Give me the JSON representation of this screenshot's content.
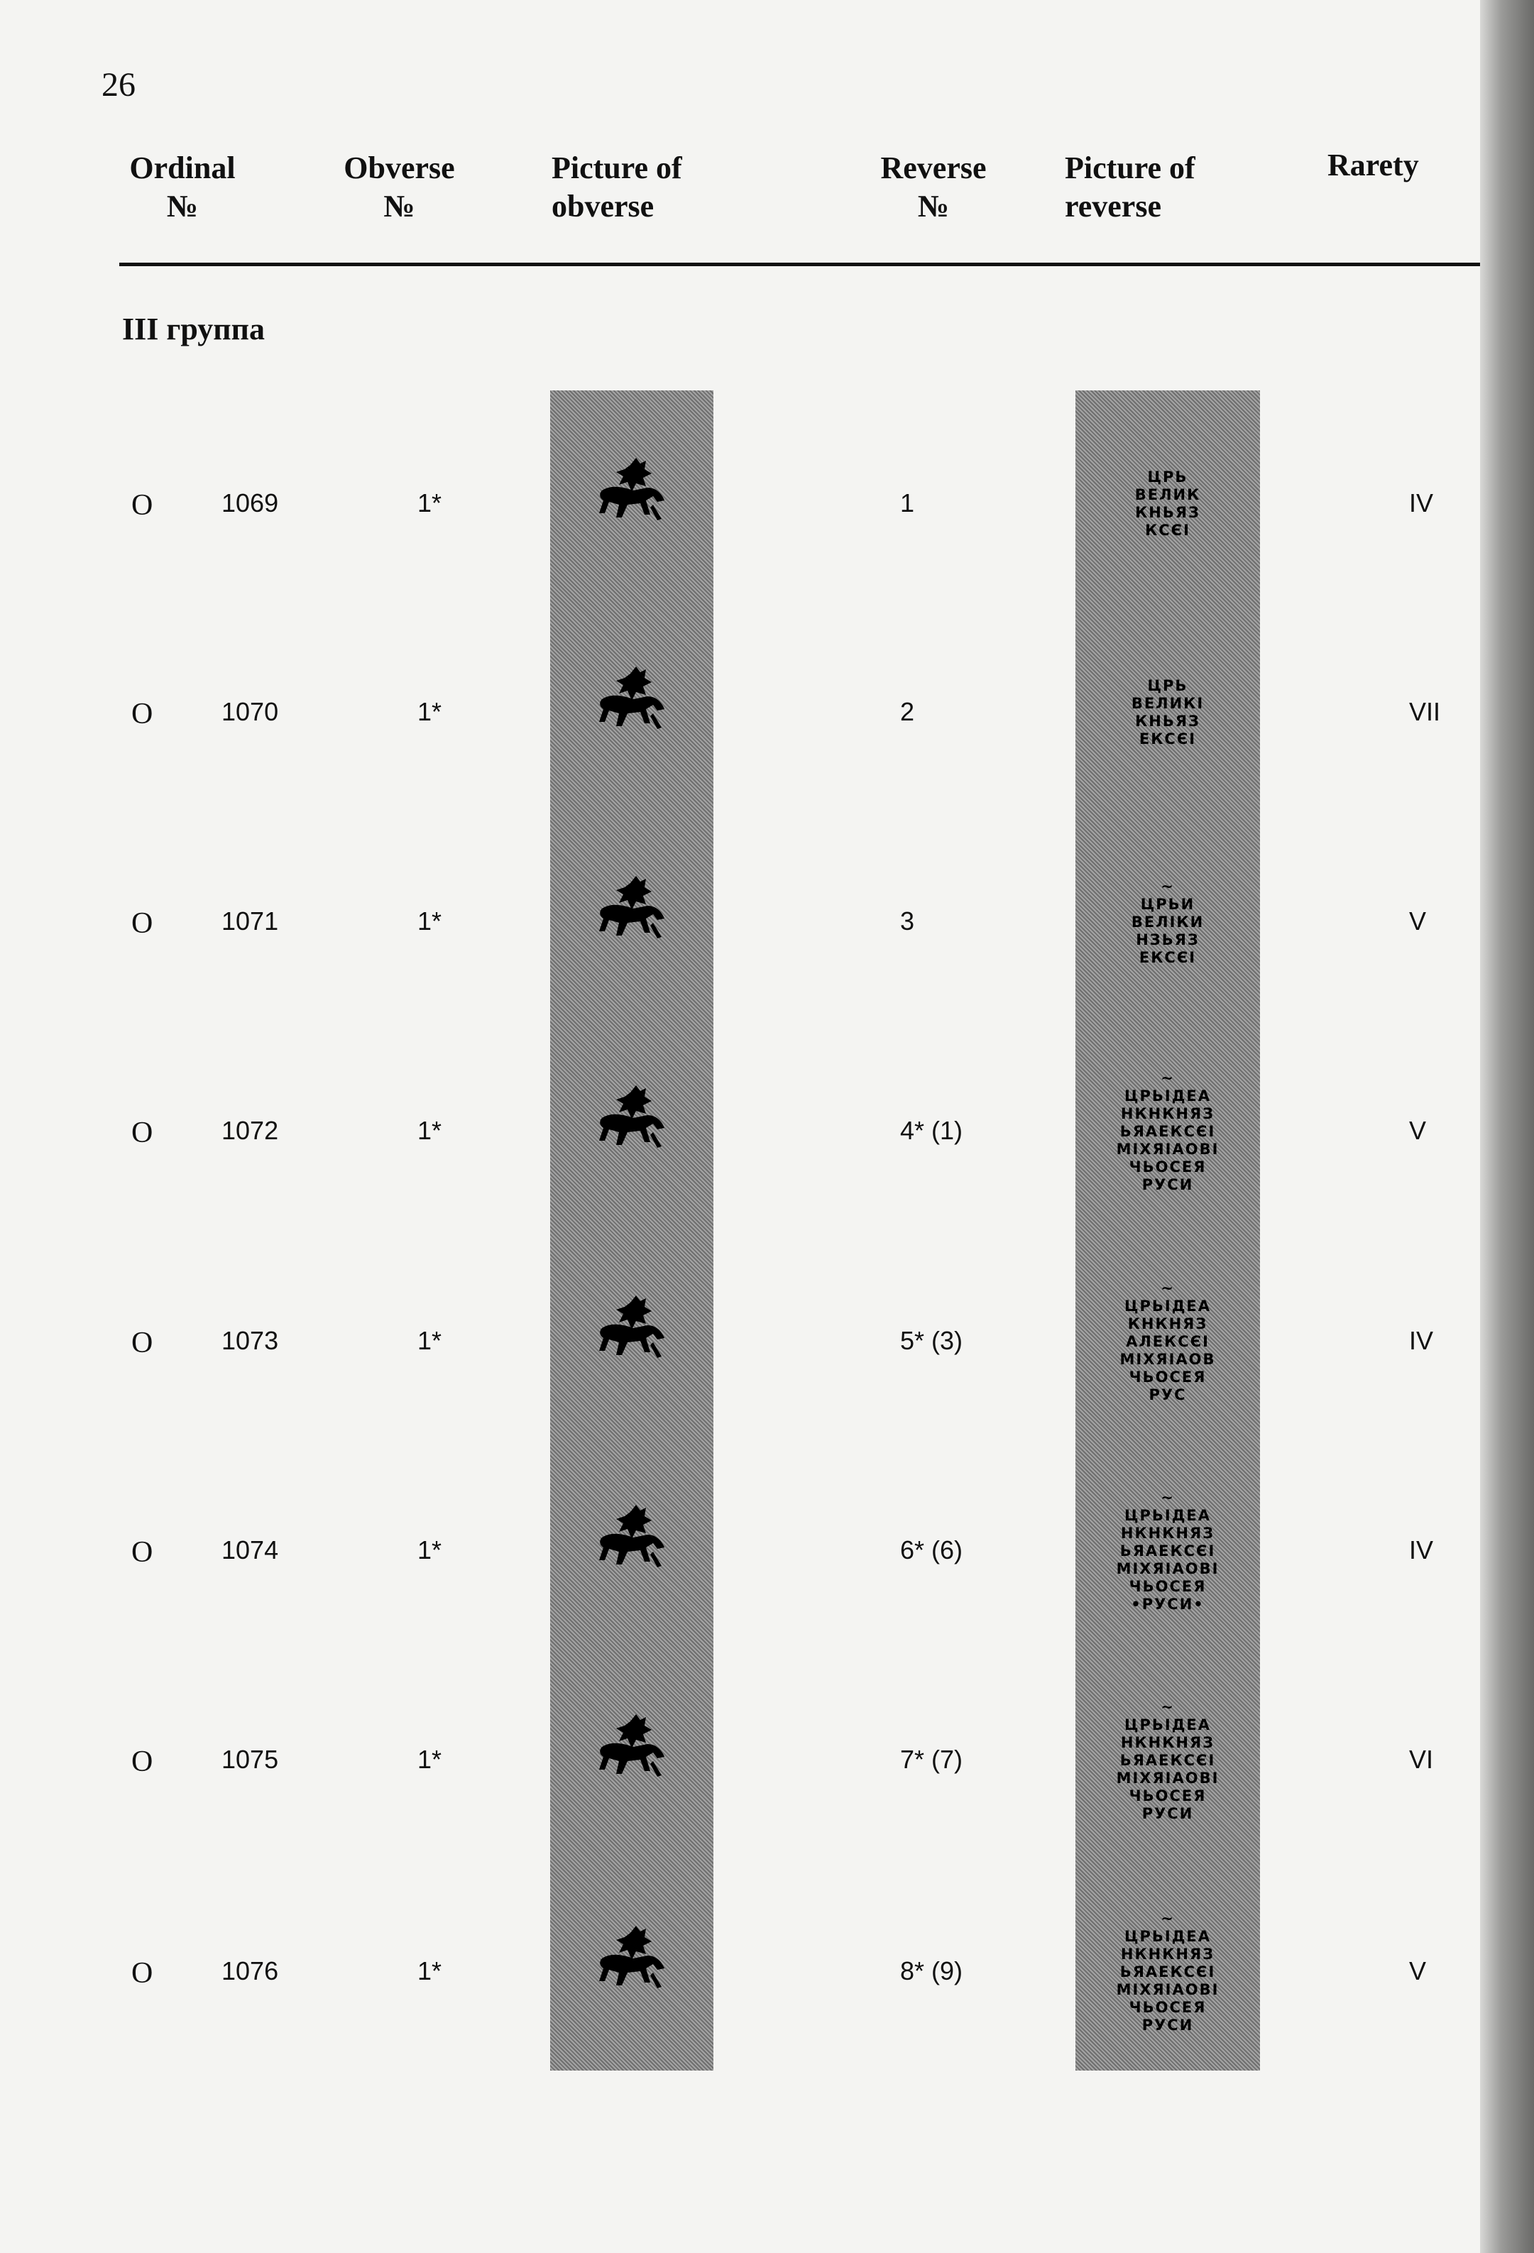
{
  "page_number": "26",
  "headers": {
    "ordinal": [
      "Ordinal",
      "№"
    ],
    "obverse": [
      "Obverse",
      "№"
    ],
    "picture_obverse": [
      "Picture of",
      "obverse"
    ],
    "reverse": [
      "Reverse",
      "№"
    ],
    "picture_reverse": [
      "Picture of",
      "reverse"
    ],
    "rarity": [
      "Rarety"
    ]
  },
  "group_title": "III группа",
  "rows": [
    {
      "type": "O",
      "ordinal": "1069",
      "obverse": "1*",
      "reverse": "1",
      "rarity": "IV",
      "legend": [
        "ЦРЬ",
        "ВЕЛИК",
        "КНЬЯЗ",
        "КСЄІ"
      ]
    },
    {
      "type": "O",
      "ordinal": "1070",
      "obverse": "1*",
      "reverse": "2",
      "rarity": "VII",
      "legend": [
        "ЦРЬ",
        "ВЕЛИКІ",
        "КНЬЯЗ",
        "ЕКСЄІ"
      ]
    },
    {
      "type": "O",
      "ordinal": "1071",
      "obverse": "1*",
      "reverse": "3",
      "rarity": "V",
      "legend": [
        "~",
        "ЦРЬИ",
        "ВЕЛІКИ",
        "НЗЬЯЗ",
        "ЕКСЄІ"
      ]
    },
    {
      "type": "O",
      "ordinal": "1072",
      "obverse": "1*",
      "reverse": "4* (1)",
      "rarity": "V",
      "legend": [
        "~",
        "ЦРЬІДЕА",
        "НКНКНЯЗ",
        "ЬЯАЕКСЄІ",
        "МІХЯІАОВІ",
        "ЧЬОСЕЯ",
        "РУСИ"
      ]
    },
    {
      "type": "O",
      "ordinal": "1073",
      "obverse": "1*",
      "reverse": "5* (3)",
      "rarity": "IV",
      "legend": [
        "~",
        "ЦРЬІДЕА",
        "КНКНЯЗ",
        "АЛЕКСЄІ",
        "МІХЯІАОВ",
        "ЧЬОСЕЯ",
        "РУС"
      ]
    },
    {
      "type": "O",
      "ordinal": "1074",
      "obverse": "1*",
      "reverse": "6* (6)",
      "rarity": "IV",
      "legend": [
        "~",
        "ЦРЬІДЕА",
        "НКНКНЯЗ",
        "ЬЯАЕКСЄІ",
        "МІХЯІАОВІ",
        "ЧЬОСЕЯ",
        "•РУСИ•"
      ]
    },
    {
      "type": "O",
      "ordinal": "1075",
      "obverse": "1*",
      "reverse": "7* (7)",
      "rarity": "VI",
      "legend": [
        "~",
        "ЦРЬІДЕА",
        "НКНКНЯЗ",
        "ЬЯАЕКСЄІ",
        "МІХЯІАОВІ",
        "ЧЬОСЕЯ",
        "РУСИ"
      ]
    },
    {
      "type": "O",
      "ordinal": "1076",
      "obverse": "1*",
      "reverse": "8* (9)",
      "rarity": "V",
      "legend": [
        "~",
        "ЦРЬІДЕА",
        "НКНКНЯЗ",
        "ЬЯАЕКСЄІ",
        "МІХЯІАОВІ",
        "ЧЬОСЕЯ",
        "РУСИ"
      ]
    }
  ]
}
